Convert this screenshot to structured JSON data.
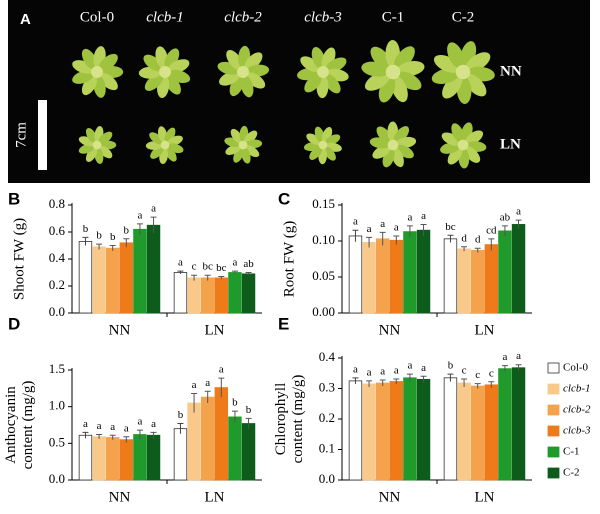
{
  "photo": {
    "panel": "A",
    "scale": "7cm",
    "columns": [
      "Col-0",
      "clcb-1",
      "clcb-2",
      "clcb-3",
      "C-1",
      "C-2"
    ],
    "rows": [
      "NN",
      "LN"
    ]
  },
  "chart_data": [
    {
      "type": "bar",
      "panel": "B",
      "ylabel": [
        "Shoot FW (g)"
      ],
      "categories": [
        "NN",
        "LN"
      ],
      "ylim": [
        0,
        0.8
      ],
      "yticks": [
        {
          "value": 0,
          "label": "0.0"
        },
        0.2,
        0.4,
        0.6,
        0.8
      ],
      "series": [
        {
          "name": "Col-0",
          "color": "#ffffff",
          "values": [
            0.53,
            0.3
          ],
          "errors": [
            0.03,
            0.01
          ],
          "letters": [
            "b",
            "a"
          ]
        },
        {
          "name": "clcb-1",
          "color": "#f9c98c",
          "values": [
            0.49,
            0.26
          ],
          "errors": [
            0.02,
            0.02
          ],
          "letters": [
            "b",
            "c"
          ]
        },
        {
          "name": "clcb-2",
          "color": "#f5a24c",
          "values": [
            0.48,
            0.26
          ],
          "errors": [
            0.02,
            0.02
          ],
          "letters": [
            "b",
            "bc"
          ]
        },
        {
          "name": "clcb-3",
          "color": "#ef7a1a",
          "values": [
            0.52,
            0.26
          ],
          "errors": [
            0.03,
            0.01
          ],
          "letters": [
            "b",
            "bc"
          ]
        },
        {
          "name": "C-1",
          "color": "#1f9a2b",
          "values": [
            0.62,
            0.3
          ],
          "errors": [
            0.04,
            0.01
          ],
          "letters": [
            "a",
            "a"
          ]
        },
        {
          "name": "C-2",
          "color": "#0e5c1b",
          "values": [
            0.65,
            0.29
          ],
          "errors": [
            0.06,
            0.01
          ],
          "letters": [
            "a",
            "ab"
          ]
        }
      ]
    },
    {
      "type": "bar",
      "panel": "C",
      "ylabel": [
        "Root FW (g)"
      ],
      "categories": [
        "NN",
        "LN"
      ],
      "ylim": [
        0,
        0.15
      ],
      "yticks": [
        {
          "value": 0,
          "label": "0.00"
        },
        0.05,
        {
          "value": 0.1,
          "label": "0.10"
        },
        0.15
      ],
      "series": [
        {
          "name": "Col-0",
          "color": "#ffffff",
          "values": [
            0.107,
            0.103
          ],
          "errors": [
            0.008,
            0.005
          ],
          "letters": [
            "a",
            "bc"
          ]
        },
        {
          "name": "clcb-1",
          "color": "#f9c98c",
          "values": [
            0.098,
            0.089
          ],
          "errors": [
            0.007,
            0.003
          ],
          "letters": [
            "a",
            "d"
          ]
        },
        {
          "name": "clcb-2",
          "color": "#f5a24c",
          "values": [
            0.103,
            0.087
          ],
          "errors": [
            0.009,
            0.003
          ],
          "letters": [
            "a",
            "d"
          ]
        },
        {
          "name": "clcb-3",
          "color": "#ef7a1a",
          "values": [
            0.101,
            0.095
          ],
          "errors": [
            0.006,
            0.008
          ],
          "letters": [
            "a",
            "cd"
          ]
        },
        {
          "name": "C-1",
          "color": "#1f9a2b",
          "values": [
            0.113,
            0.114
          ],
          "errors": [
            0.008,
            0.007
          ],
          "letters": [
            "a",
            "ab"
          ]
        },
        {
          "name": "C-2",
          "color": "#0e5c1b",
          "values": [
            0.115,
            0.123
          ],
          "errors": [
            0.008,
            0.006
          ],
          "letters": [
            "a",
            "a"
          ]
        }
      ]
    },
    {
      "type": "bar",
      "panel": "D",
      "ylabel": [
        "Anthocyanin",
        "content (mg/g)"
      ],
      "categories": [
        "NN",
        "LN"
      ],
      "ylim": [
        0,
        1.5
      ],
      "yticks": [
        {
          "value": 0,
          "label": "0.0"
        },
        0.5,
        {
          "value": 1,
          "label": "1.0"
        },
        1.5
      ],
      "series": [
        {
          "name": "Col-0",
          "color": "#ffffff",
          "values": [
            0.61,
            0.7
          ],
          "errors": [
            0.04,
            0.07
          ],
          "letters": [
            "a",
            "b"
          ]
        },
        {
          "name": "clcb-1",
          "color": "#f9c98c",
          "values": [
            0.59,
            1.05
          ],
          "errors": [
            0.03,
            0.13
          ],
          "letters": [
            "a",
            "a"
          ]
        },
        {
          "name": "clcb-2",
          "color": "#f5a24c",
          "values": [
            0.58,
            1.13
          ],
          "errors": [
            0.03,
            0.08
          ],
          "letters": [
            "a",
            "a"
          ]
        },
        {
          "name": "clcb-3",
          "color": "#ef7a1a",
          "values": [
            0.55,
            1.26
          ],
          "errors": [
            0.04,
            0.13
          ],
          "letters": [
            "a",
            "a"
          ]
        },
        {
          "name": "C-1",
          "color": "#1f9a2b",
          "values": [
            0.62,
            0.86
          ],
          "errors": [
            0.06,
            0.08
          ],
          "letters": [
            "a",
            "b"
          ]
        },
        {
          "name": "C-2",
          "color": "#0e5c1b",
          "values": [
            0.61,
            0.77
          ],
          "errors": [
            0.04,
            0.07
          ],
          "letters": [
            "a",
            "b"
          ]
        }
      ]
    },
    {
      "type": "bar",
      "panel": "E",
      "ylabel": [
        "Chlorophyll",
        "content (mg/g)"
      ],
      "categories": [
        "NN",
        "LN"
      ],
      "ylim": [
        0,
        0.4
      ],
      "yticks": [
        {
          "value": 0,
          "label": "0.0"
        },
        0.1,
        0.2,
        0.3,
        0.4
      ],
      "legend": "right",
      "series": [
        {
          "name": "Col-0",
          "color": "#ffffff",
          "values": [
            0.325,
            0.335
          ],
          "errors": [
            0.01,
            0.012
          ],
          "letters": [
            "a",
            "b"
          ]
        },
        {
          "name": "clcb-1",
          "color": "#f9c98c",
          "values": [
            0.315,
            0.318
          ],
          "errors": [
            0.01,
            0.013
          ],
          "letters": [
            "a",
            "c"
          ]
        },
        {
          "name": "clcb-2",
          "color": "#f5a24c",
          "values": [
            0.318,
            0.308
          ],
          "errors": [
            0.01,
            0.008
          ],
          "letters": [
            "a",
            "c"
          ]
        },
        {
          "name": "clcb-3",
          "color": "#ef7a1a",
          "values": [
            0.323,
            0.312
          ],
          "errors": [
            0.008,
            0.01
          ],
          "letters": [
            "a",
            "c"
          ]
        },
        {
          "name": "C-1",
          "color": "#1f9a2b",
          "values": [
            0.335,
            0.365
          ],
          "errors": [
            0.012,
            0.01
          ],
          "letters": [
            "a",
            "a"
          ]
        },
        {
          "name": "C-2",
          "color": "#0e5c1b",
          "values": [
            0.33,
            0.368
          ],
          "errors": [
            0.01,
            0.01
          ],
          "letters": [
            "a",
            "a"
          ]
        }
      ]
    }
  ]
}
